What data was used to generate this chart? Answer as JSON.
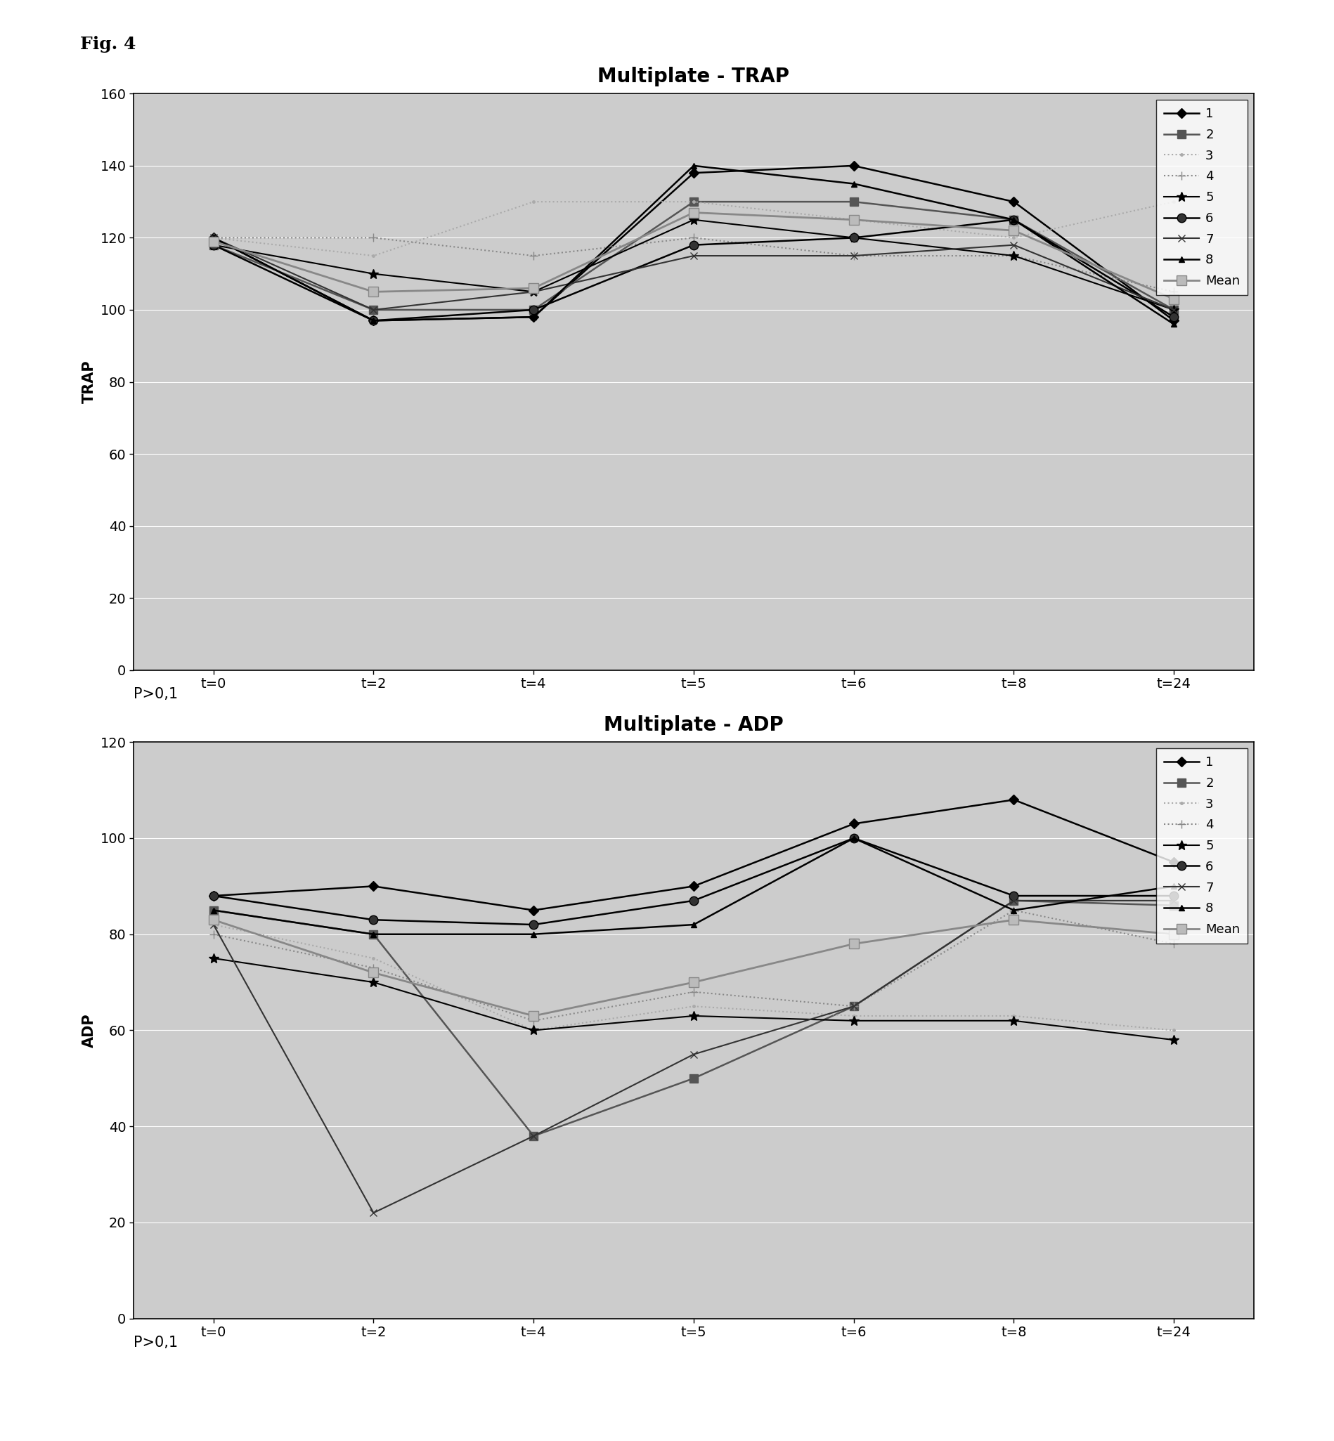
{
  "fig_label": "Fig. 4",
  "trap": {
    "title": "Multiplate - TRAP",
    "ylabel": "TRAP",
    "xtick_labels": [
      "t=0",
      "t=2",
      "t=4",
      "t=5",
      "t=6",
      "t=8",
      "t=24"
    ],
    "ylim": [
      0,
      160
    ],
    "yticks": [
      0,
      20,
      40,
      60,
      80,
      100,
      120,
      140,
      160
    ],
    "series": {
      "1": [
        120,
        97,
        98,
        138,
        140,
        130,
        97
      ],
      "2": [
        118,
        100,
        100,
        130,
        130,
        125,
        100
      ],
      "3": [
        120,
        115,
        130,
        130,
        125,
        120,
        130
      ],
      "4": [
        120,
        120,
        115,
        120,
        115,
        115,
        105
      ],
      "5": [
        118,
        110,
        105,
        125,
        120,
        115,
        100
      ],
      "6": [
        118,
        97,
        100,
        118,
        120,
        125,
        98
      ],
      "7": [
        120,
        100,
        105,
        115,
        115,
        118,
        100
      ],
      "8": [
        120,
        97,
        98,
        140,
        135,
        125,
        96
      ],
      "Mean": [
        119,
        105,
        106,
        127,
        125,
        122,
        103
      ]
    },
    "p_label": "P>0,1"
  },
  "adp": {
    "title": "Multiplate - ADP",
    "ylabel": "ADP",
    "xtick_labels": [
      "t=0",
      "t=2",
      "t=4",
      "t=5",
      "t=6",
      "t=8",
      "t=24"
    ],
    "ylim": [
      0,
      120
    ],
    "yticks": [
      0,
      20,
      40,
      60,
      80,
      100,
      120
    ],
    "series": {
      "1": [
        88,
        90,
        85,
        90,
        103,
        108,
        95
      ],
      "2": [
        85,
        80,
        38,
        50,
        65,
        87,
        86
      ],
      "3": [
        82,
        75,
        60,
        65,
        63,
        63,
        60
      ],
      "4": [
        80,
        73,
        62,
        68,
        65,
        85,
        78
      ],
      "5": [
        75,
        70,
        60,
        63,
        62,
        62,
        58
      ],
      "6": [
        88,
        83,
        82,
        87,
        100,
        88,
        88
      ],
      "7": [
        82,
        22,
        38,
        55,
        65,
        87,
        87
      ],
      "8": [
        85,
        80,
        80,
        82,
        100,
        85,
        90
      ],
      "Mean": [
        83,
        72,
        63,
        70,
        78,
        83,
        80
      ]
    },
    "p_label": "P>0,1"
  },
  "line_styles": {
    "1": {
      "color": "#000000",
      "linestyle": "-",
      "marker": "D",
      "linewidth": 1.8,
      "markersize": 7,
      "markerfacecolor": "#000000"
    },
    "2": {
      "color": "#555555",
      "linestyle": "-",
      "marker": "s",
      "linewidth": 1.8,
      "markersize": 8,
      "markerfacecolor": "#555555"
    },
    "3": {
      "color": "#aaaaaa",
      "linestyle": ":",
      "marker": ".",
      "linewidth": 1.5,
      "markersize": 5,
      "markerfacecolor": "#aaaaaa"
    },
    "4": {
      "color": "#888888",
      "linestyle": ":",
      "marker": "+",
      "linewidth": 1.5,
      "markersize": 8,
      "markerfacecolor": "#888888"
    },
    "5": {
      "color": "#000000",
      "linestyle": "-",
      "marker": "*",
      "linewidth": 1.5,
      "markersize": 10,
      "markerfacecolor": "#000000"
    },
    "6": {
      "color": "#000000",
      "linestyle": "-",
      "marker": "o",
      "linewidth": 1.8,
      "markersize": 9,
      "markerfacecolor": "#333333"
    },
    "7": {
      "color": "#333333",
      "linestyle": "-",
      "marker": "x",
      "linewidth": 1.5,
      "markersize": 7,
      "markerfacecolor": "#333333"
    },
    "8": {
      "color": "#000000",
      "linestyle": "-",
      "marker": "^",
      "linewidth": 1.8,
      "markersize": 6,
      "markerfacecolor": "#000000"
    },
    "Mean": {
      "color": "#888888",
      "linestyle": "-",
      "marker": "s",
      "linewidth": 2.0,
      "markersize": 10,
      "markerfacecolor": "#bbbbbb"
    }
  },
  "series_order": [
    "1",
    "2",
    "3",
    "4",
    "5",
    "6",
    "7",
    "8",
    "Mean"
  ],
  "plot_bg_color": "#cccccc",
  "outer_box_color": "#ffffff",
  "grid_color": "#ffffff"
}
